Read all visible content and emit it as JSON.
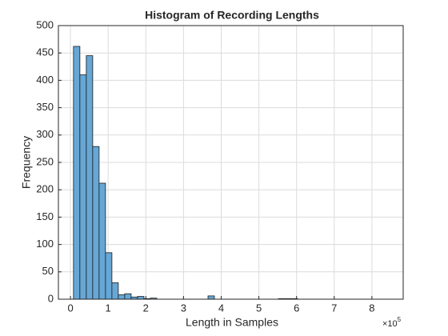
{
  "chart_data": {
    "type": "histogram",
    "title": "Histogram of Recording Lengths",
    "x_label": "Length in Samples",
    "y_label": "Frequency",
    "x_exponent_base": "×10",
    "x_exponent_power": "5",
    "bins": [
      8000,
      25000,
      42000,
      59000,
      76000,
      93000,
      110000,
      127000,
      144000,
      161000,
      178000,
      195000,
      212000,
      229000,
      246000,
      263000,
      280000,
      297000,
      314000,
      331000,
      348000,
      365000,
      382000,
      399000,
      416000,
      433000,
      450000,
      467000,
      484000,
      501000,
      518000,
      535000,
      552000,
      569000,
      586000,
      603000
    ],
    "values": [
      462,
      410,
      445,
      279,
      212,
      85,
      30,
      8,
      10,
      4,
      5,
      1,
      2,
      0,
      0,
      0,
      0,
      0,
      0,
      0,
      0,
      6,
      0,
      0,
      0,
      0,
      0,
      0,
      0,
      0,
      0,
      0,
      1,
      1,
      1
    ],
    "color": "#66a7d6",
    "xlim": [
      -32000,
      883000
    ],
    "xticks": [
      {
        "value": 0,
        "label": "0"
      },
      {
        "value": 100000,
        "label": "1"
      },
      {
        "value": 200000,
        "label": "2"
      },
      {
        "value": 300000,
        "label": "3"
      },
      {
        "value": 400000,
        "label": "4"
      },
      {
        "value": 500000,
        "label": "5"
      },
      {
        "value": 600000,
        "label": "6"
      },
      {
        "value": 700000,
        "label": "7"
      },
      {
        "value": 800000,
        "label": "8"
      }
    ],
    "ylim": [
      0,
      500
    ],
    "yticks": [
      0,
      50,
      100,
      150,
      200,
      250,
      300,
      350,
      400,
      450,
      500
    ],
    "grid": true
  }
}
